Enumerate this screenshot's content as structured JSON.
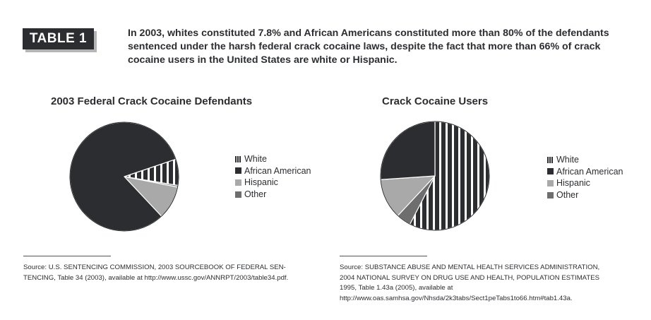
{
  "header": {
    "badge": "TABLE 1",
    "headline": "In 2003, whites constituted 7.8% and African Americans constituted more than 80% of the defendants sentenced under the harsh federal crack cocaine laws, despite the fact that more than 66% of crack cocaine users in the United States are white or Hispanic."
  },
  "colors": {
    "african_american": "#2b2d30",
    "hispanic": "#a9a9a9",
    "other": "#6e6e6e",
    "white_stripe_dark": "#2b2d30",
    "white_stripe_light": "#ffffff"
  },
  "chart_data": [
    {
      "type": "pie",
      "title": "2003 Federal Crack Cocaine Defendants",
      "legend": [
        "White",
        "African American",
        "Hispanic",
        "Other"
      ],
      "values": [
        7.8,
        81.8,
        9.9,
        0.5
      ],
      "unit": "%",
      "legend_position": "right"
    },
    {
      "type": "pie",
      "title": "Crack Cocaine Users",
      "legend": [
        "White",
        "African American",
        "Hispanic",
        "Other"
      ],
      "values": [
        53,
        24,
        11,
        4
      ],
      "unit": "%",
      "legend_position": "right"
    }
  ],
  "sources": {
    "left": [
      "Source: U.S. SENTENCING COMMISSION, 2003 SOURCEBOOK OF FEDERAL SEN-",
      "TENCING, Table 34 (2003), available at http://www.ussc.gov/ANNRPT/2003/table34.pdf."
    ],
    "right": [
      "Source: SUBSTANCE ABUSE AND MENTAL HEALTH SERVICES ADMINISTRATION,",
      "2004 NATIONAL SURVEY ON DRUG USE AND HEALTH, POPULATION ESTIMATES",
      "1995, Table 1.43a (2005), available at",
      "http://www.oas.samhsa.gov/Nhsda/2k3tabs/Sect1peTabs1to66.htm#tab1.43a."
    ]
  }
}
